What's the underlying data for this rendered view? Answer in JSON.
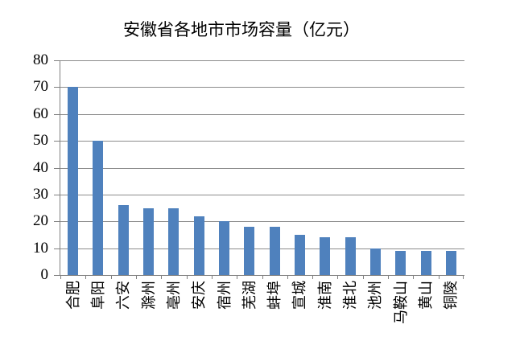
{
  "chart_data": {
    "type": "bar",
    "title": "安徽省各地市市场容量（亿元）",
    "categories": [
      "合肥",
      "阜阳",
      "六安",
      "滁州",
      "亳州",
      "安庆",
      "宿州",
      "芜湖",
      "蚌埠",
      "宣城",
      "淮南",
      "淮北",
      "池州",
      "马鞍山",
      "黄山",
      "铜陵"
    ],
    "values": [
      70,
      50,
      26,
      25,
      25,
      22,
      20,
      18,
      18,
      15,
      14,
      14,
      10,
      9,
      9,
      9
    ],
    "xlabel": "",
    "ylabel": "",
    "ylim": [
      0,
      80
    ],
    "yticks": [
      0,
      10,
      20,
      30,
      40,
      50,
      60,
      70,
      80
    ],
    "x_label_rotation_deg": -90,
    "grid": "horizontal",
    "legend": "none",
    "bar_color": "#4F81BD",
    "axis_color": "#808080",
    "gridline_color": "#8C8C8C",
    "text_color": "#000000",
    "background_color": "#FFFFFF"
  }
}
